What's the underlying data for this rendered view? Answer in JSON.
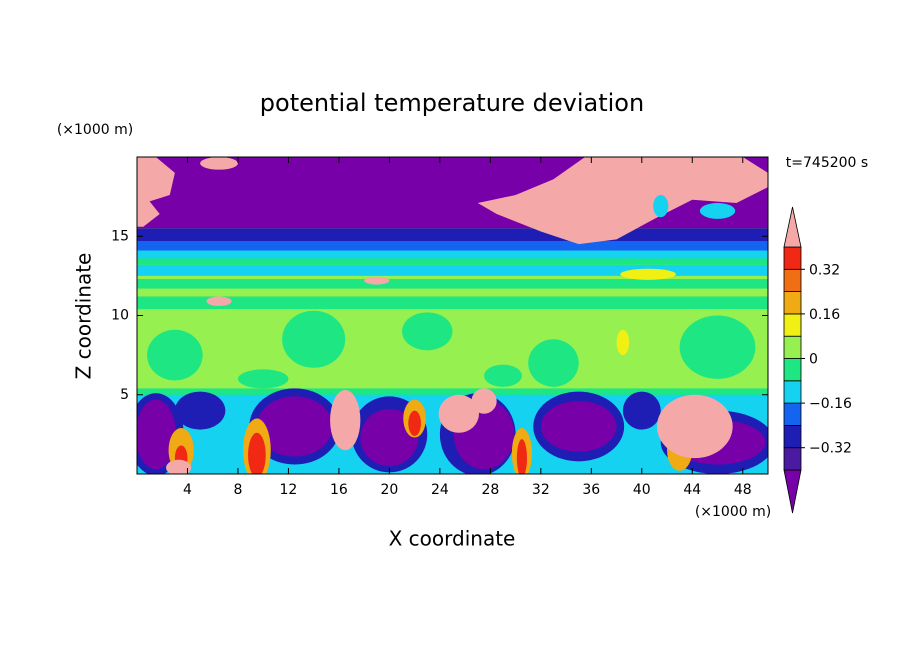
{
  "chart_data": {
    "type": "contour",
    "title": "potential temperature deviation",
    "x_label": "X coordinate",
    "y_label": "Z coordinate",
    "x_unit": "(×1000 m)",
    "y_unit": "(×1000 m)",
    "annotation": "t=745200 s",
    "xlim": [
      0,
      50
    ],
    "ylim": [
      0,
      20
    ],
    "xticks": [
      4,
      8,
      12,
      16,
      20,
      24,
      28,
      32,
      36,
      40,
      44,
      48
    ],
    "yticks": [
      5,
      10,
      15
    ],
    "levels": [
      -0.4,
      -0.32,
      -0.24,
      -0.16,
      -0.08,
      0,
      0.08,
      0.16,
      0.24,
      0.32,
      0.4
    ],
    "level_ticks": [
      {
        "value": 0.32,
        "label": "0.32"
      },
      {
        "value": 0.16,
        "label": "0.16"
      },
      0,
      {
        "value": -0.16,
        "label": "−0.16"
      },
      {
        "value": -0.32,
        "label": "−0.32"
      }
    ],
    "colors": [
      "#7800a8",
      "#4a1aa0",
      "#1e1eb4",
      "#1464f0",
      "#14d2f0",
      "#1ee682",
      "#96f050",
      "#f0f014",
      "#f0aa14",
      "#f06e14",
      "#f02814",
      "#f4a8a8"
    ]
  }
}
